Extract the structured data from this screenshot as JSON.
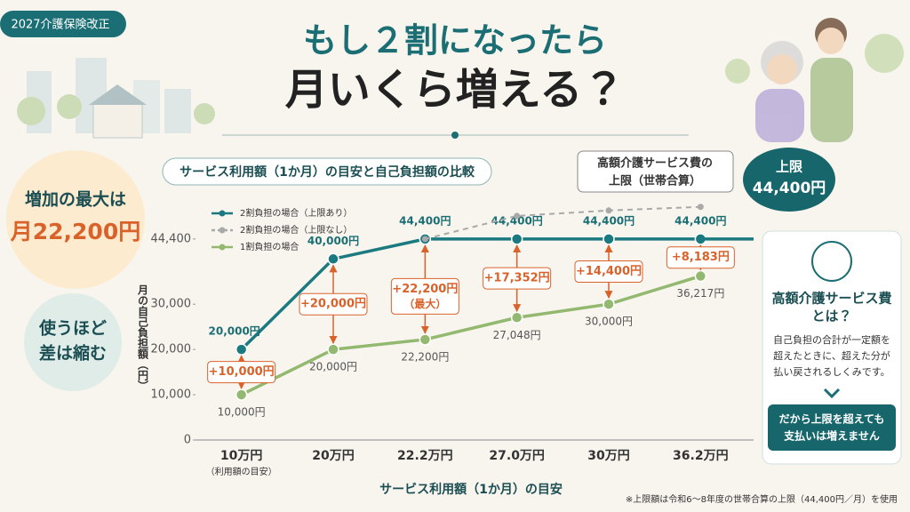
{
  "tag": "2027介護保険改正",
  "headline": [
    "もし２割になったら",
    "月いくら増える？"
  ],
  "max_badge": [
    "増加の最大は",
    "月22,200円"
  ],
  "trend_badge": [
    "使うほど",
    "差は縮む"
  ],
  "cap_callout": [
    "高額介護サービス費の",
    "上限（世帯合算）"
  ],
  "cap_badge": [
    "上限",
    "44,400円"
  ],
  "info_panel": {
    "title": [
      "高額介護サービス費",
      "とは？"
    ],
    "body": [
      "自己負担の合計が一定額を",
      "超えたときに、超えた分が",
      "払い戻されるしくみです。"
    ],
    "button": [
      "だから上限を超えても",
      "支払いは増えません"
    ]
  },
  "footnote": "※上限額は令和6～8年度の世帯合算の上限（44,400円／月）を使用",
  "chart_data": {
    "type": "line",
    "title": "サービス利用額（1か月）の目安と自己負担額の比較",
    "x_label": "サービス利用額（1か月）の目安",
    "x_sublabel": "（利用額の目安）",
    "y_label": "月の自己負担額（円）",
    "categories": [
      "10万円",
      "20万円",
      "22.2万円",
      "27.0万円",
      "30万円",
      "36.2万円"
    ],
    "series": [
      {
        "name": "2割負担の場合（上限あり）",
        "color": "#1b7a80",
        "dashed": false,
        "values": [
          20000,
          40000,
          44400,
          44400,
          44400,
          44400
        ],
        "value_labels": [
          "20,000円",
          "40,000円",
          "44,400円",
          "44,400円",
          "44,400円",
          "44,400円"
        ]
      },
      {
        "name": "2割負担の場合（上限なし）",
        "color": "#a9a9a9",
        "dashed": true,
        "values": [
          null,
          null,
          44400,
          49500,
          50700,
          51500
        ]
      },
      {
        "name": "1割負担の場合",
        "color": "#93b86f",
        "dashed": false,
        "values": [
          10000,
          20000,
          22200,
          27048,
          30000,
          36217
        ],
        "value_labels": [
          "10,000円",
          "20,000円",
          "22,200円",
          "27,048円",
          "30,000円",
          "36,217円"
        ]
      }
    ],
    "differences": {
      "color": "#d9622b",
      "values": [
        10000,
        20000,
        22200,
        17352,
        14400,
        8183
      ],
      "value_labels": [
        "+10,000円",
        "+20,000円",
        "+22,200円",
        "+17,352円",
        "+14,400円",
        "+8,183円"
      ]
    },
    "max_note": "（最大）",
    "ylim": [
      0,
      54000
    ],
    "yticks": [
      0,
      {
        "value": 10000,
        "label": "10,000"
      },
      {
        "value": 20000,
        "label": "20,000"
      },
      {
        "value": 30000,
        "label": "30,000"
      },
      {
        "value": 44400,
        "label": "44,400"
      }
    ],
    "legend": "upper left",
    "grid": false
  }
}
